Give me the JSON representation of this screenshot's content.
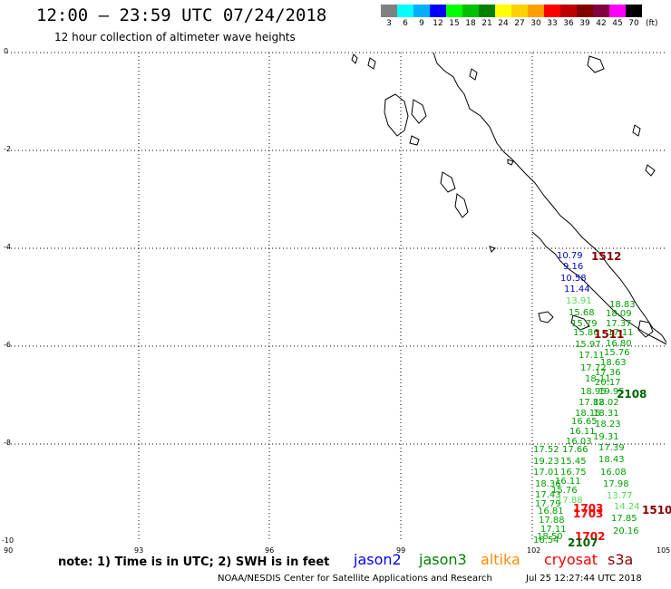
{
  "header": {
    "title": "12:00 – 23:59 UTC 07/24/2018",
    "subtitle": "12 hour collection of altimeter wave heights"
  },
  "legend": {
    "unit": "(ft)",
    "labels": [
      "3",
      "6",
      "9",
      "12",
      "15",
      "18",
      "21",
      "24",
      "27",
      "30",
      "33",
      "36",
      "39",
      "42",
      "45",
      "70"
    ],
    "colors": [
      "#808080",
      "#00ffff",
      "#00b0ff",
      "#0000ff",
      "#00ff00",
      "#00c000",
      "#008000",
      "#ffff00",
      "#ffd000",
      "#ffa000",
      "#ff0000",
      "#c00000",
      "#800000",
      "#800040",
      "#ff00ff",
      "#000000"
    ]
  },
  "axes": {
    "lat_labels": [
      "0",
      "-2",
      "-4",
      "-6",
      "-8",
      "-10"
    ],
    "lon_labels": [
      "90",
      "93",
      "96",
      "99",
      "102",
      "105"
    ]
  },
  "wave_points": [
    {
      "v": "10.79",
      "c": "#0000c0"
    },
    {
      "v": "9.16",
      "c": "#0000c0"
    },
    {
      "v": "10.58",
      "c": "#0000c0"
    },
    {
      "v": "11.44",
      "c": "#0000c0"
    },
    {
      "v": "13.91",
      "c": "#55dd55"
    },
    {
      "v": "15.68",
      "c": "#00a000"
    },
    {
      "v": "15.79",
      "c": "#00a000"
    },
    {
      "v": "15.86",
      "c": "#00a000"
    },
    {
      "v": "15.97",
      "c": "#00a000"
    },
    {
      "v": "17.11",
      "c": "#00a000"
    },
    {
      "v": "17.72",
      "c": "#00a000"
    },
    {
      "v": "18.11",
      "c": "#00a000"
    },
    {
      "v": "18.95",
      "c": "#00a000"
    },
    {
      "v": "17.82",
      "c": "#00a000"
    },
    {
      "v": "18.15",
      "c": "#00a000"
    },
    {
      "v": "16.65",
      "c": "#00a000"
    },
    {
      "v": "16.11",
      "c": "#00a000"
    },
    {
      "v": "16.03",
      "c": "#00a000"
    },
    {
      "v": "17.52",
      "c": "#00a000"
    },
    {
      "v": "19.23",
      "c": "#00a000"
    },
    {
      "v": "17.01",
      "c": "#00a000"
    },
    {
      "v": "18.36",
      "c": "#00a000"
    },
    {
      "v": "17.43",
      "c": "#00a000"
    },
    {
      "v": "17.79",
      "c": "#00a000"
    },
    {
      "v": "16.81",
      "c": "#00a000"
    },
    {
      "v": "17.88",
      "c": "#00a000"
    },
    {
      "v": "17.11",
      "c": "#00a000"
    },
    {
      "v": "18.50",
      "c": "#00a000"
    },
    {
      "v": "16.54",
      "c": "#00a000"
    },
    {
      "v": "17.66",
      "c": "#00a000"
    },
    {
      "v": "15.45",
      "c": "#00a000"
    },
    {
      "v": "16.75",
      "c": "#00a000"
    },
    {
      "v": "16.11",
      "c": "#00a000"
    },
    {
      "v": "15.76",
      "c": "#00a000"
    },
    {
      "v": "17.88",
      "c": "#55dd55"
    },
    {
      "v": "18.83",
      "c": "#00a000"
    },
    {
      "v": "18.09",
      "c": "#00a000"
    },
    {
      "v": "17.37",
      "c": "#00a000"
    },
    {
      "v": "17.11",
      "c": "#00a000"
    },
    {
      "v": "16.80",
      "c": "#00a000"
    },
    {
      "v": "15.76",
      "c": "#00a000"
    },
    {
      "v": "18.63",
      "c": "#00a000"
    },
    {
      "v": "17.36",
      "c": "#00a000"
    },
    {
      "v": "20.17",
      "c": "#00a000"
    },
    {
      "v": "19.95",
      "c": "#00a000"
    },
    {
      "v": "18.02",
      "c": "#00a000"
    },
    {
      "v": "18.31",
      "c": "#00a000"
    },
    {
      "v": "18.23",
      "c": "#00a000"
    },
    {
      "v": "19.31",
      "c": "#00a000"
    },
    {
      "v": "17.39",
      "c": "#00a000"
    },
    {
      "v": "18.43",
      "c": "#00a000"
    },
    {
      "v": "16.08",
      "c": "#00a000"
    },
    {
      "v": "17.98",
      "c": "#00a000"
    },
    {
      "v": "13.77",
      "c": "#55dd55"
    },
    {
      "v": "14.24",
      "c": "#55dd55"
    },
    {
      "v": "17.85",
      "c": "#00a000"
    },
    {
      "v": "20.16",
      "c": "#00a000"
    }
  ],
  "track_marks": [
    {
      "v": "1512",
      "c": "#8b0000"
    },
    {
      "v": "1511",
      "c": "#8b0000"
    },
    {
      "v": "2108",
      "c": "#006400"
    },
    {
      "v": "1703",
      "c": "#ff0000"
    },
    {
      "v": "1703",
      "c": "#ff0000"
    },
    {
      "v": "1510",
      "c": "#8b0000"
    },
    {
      "v": "1702",
      "c": "#ff0000"
    },
    {
      "v": "2107",
      "c": "#006400"
    }
  ],
  "note": "note:  1) Time is in UTC;  2) SWH is in feet",
  "satellites": [
    {
      "name": "jason2",
      "color": "#0000ff"
    },
    {
      "name": "jason3",
      "color": "#008000"
    },
    {
      "name": "altika",
      "color": "#ff8c00"
    },
    {
      "name": "cryosat",
      "color": "#ff0000"
    },
    {
      "name": "s3a",
      "color": "#8b0000"
    }
  ],
  "footer": {
    "center": "NOAA/NESDIS Center for Satellite Applications and Research",
    "timestamp": "Jul 25 12:27:44 UTC 2018"
  }
}
